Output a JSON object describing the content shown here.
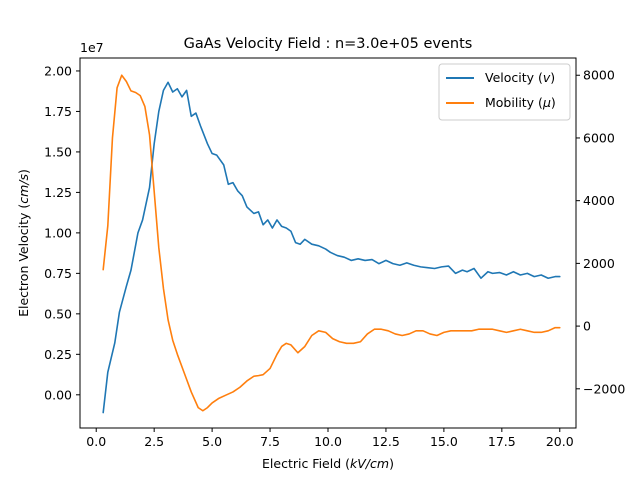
{
  "chart_data": {
    "type": "line",
    "title": "GaAs Velocity Field : n=3.0e+05 events",
    "xlabel_main": "Electric Field (",
    "xlabel_unit": "kV/cm",
    "xlabel_end": ")",
    "ylabel_main": "Electron Velocity (",
    "ylabel_unit": "cm/s",
    "ylabel_end": ")",
    "y_multiplier": "1e7",
    "xlim": [
      -0.7,
      20.7
    ],
    "ylim": [
      -2050000.0,
      20800000.0
    ],
    "y2lim": [
      -3250,
      8550
    ],
    "x_ticks": [
      0.0,
      2.5,
      5.0,
      7.5,
      10.0,
      12.5,
      15.0,
      17.5,
      20.0
    ],
    "x_tick_labels": [
      "0.0",
      "2.5",
      "5.0",
      "7.5",
      "10.0",
      "12.5",
      "15.0",
      "17.5",
      "20.0"
    ],
    "y_ticks": [
      0.0,
      2500000.0,
      5000000.0,
      7500000.0,
      10000000.0,
      12500000.0,
      15000000.0,
      17500000.0,
      20000000.0
    ],
    "y_tick_labels": [
      "0.00",
      "0.25",
      "0.50",
      "0.75",
      "1.00",
      "1.25",
      "1.50",
      "1.75",
      "2.00"
    ],
    "y2_ticks": [
      -2000,
      0,
      2000,
      4000,
      6000,
      8000
    ],
    "y2_tick_labels": [
      "−2000",
      "0",
      "2000",
      "4000",
      "6000",
      "8000"
    ],
    "legend_position": "top-right",
    "grid": false,
    "series": [
      {
        "name": "Velocity (v)",
        "legend_text": "Velocity (",
        "legend_symbol": "v",
        "axis": "left",
        "color": "#1f77b4",
        "x": [
          0.3,
          0.5,
          0.8,
          1.0,
          1.3,
          1.5,
          1.8,
          2.0,
          2.3,
          2.5,
          2.7,
          2.9,
          3.1,
          3.3,
          3.5,
          3.7,
          3.9,
          4.1,
          4.3,
          4.5,
          4.8,
          5.0,
          5.2,
          5.5,
          5.7,
          5.9,
          6.1,
          6.3,
          6.5,
          6.8,
          7.0,
          7.2,
          7.4,
          7.6,
          7.8,
          8.0,
          8.2,
          8.4,
          8.6,
          8.8,
          9.0,
          9.3,
          9.6,
          9.9,
          10.1,
          10.4,
          10.7,
          11.0,
          11.3,
          11.6,
          11.9,
          12.2,
          12.5,
          12.8,
          13.1,
          13.4,
          13.7,
          14.0,
          14.3,
          14.6,
          14.9,
          15.2,
          15.5,
          15.8,
          16.0,
          16.3,
          16.6,
          16.9,
          17.1,
          17.4,
          17.7,
          18.0,
          18.3,
          18.6,
          18.9,
          19.2,
          19.5,
          19.8,
          20.0
        ],
        "y": [
          -1100000.0,
          1400000.0,
          3200000.0,
          5100000.0,
          6700000.0,
          7700000.0,
          10000000.0,
          10800000.0,
          12800000.0,
          15500000.0,
          17500000.0,
          18800000.0,
          19300000.0,
          18700000.0,
          18900000.0,
          18400000.0,
          18800000.0,
          17200000.0,
          17400000.0,
          16600000.0,
          15500000.0,
          14900000.0,
          14800000.0,
          14200000.0,
          13000000.0,
          13100000.0,
          12600000.0,
          12300000.0,
          11600000.0,
          11200000.0,
          11300000.0,
          10500000.0,
          10800000.0,
          10300000.0,
          10800000.0,
          10400000.0,
          10300000.0,
          10100000.0,
          9400000.0,
          9300000.0,
          9600000.0,
          9300000.0,
          9200000.0,
          9000000.0,
          8800000.0,
          8600000.0,
          8500000.0,
          8300000.0,
          8400000.0,
          8300000.0,
          8350000.0,
          8100000.0,
          8300000.0,
          8100000.0,
          8000000.0,
          8150000.0,
          8000000.0,
          7900000.0,
          7850000.0,
          7800000.0,
          7900000.0,
          7950000.0,
          7500000.0,
          7700000.0,
          7600000.0,
          7800000.0,
          7200000.0,
          7600000.0,
          7500000.0,
          7550000.0,
          7400000.0,
          7600000.0,
          7400000.0,
          7500000.0,
          7300000.0,
          7400000.0,
          7200000.0,
          7300000.0,
          7300000.0
        ]
      },
      {
        "name": "Mobility (μ)",
        "legend_text": "Mobility (",
        "legend_symbol": "μ",
        "axis": "right",
        "color": "#ff7f0e",
        "x": [
          0.3,
          0.5,
          0.7,
          0.9,
          1.1,
          1.3,
          1.5,
          1.7,
          1.9,
          2.1,
          2.3,
          2.5,
          2.7,
          2.9,
          3.1,
          3.3,
          3.5,
          3.8,
          4.1,
          4.4,
          4.6,
          4.8,
          5.0,
          5.3,
          5.6,
          5.9,
          6.2,
          6.5,
          6.8,
          7.0,
          7.2,
          7.5,
          7.8,
          8.0,
          8.2,
          8.4,
          8.7,
          9.0,
          9.3,
          9.6,
          9.9,
          10.2,
          10.5,
          10.8,
          11.1,
          11.4,
          11.7,
          12.0,
          12.3,
          12.6,
          12.9,
          13.2,
          13.5,
          13.8,
          14.1,
          14.4,
          14.7,
          15.0,
          15.3,
          15.6,
          15.9,
          16.2,
          16.5,
          16.8,
          17.1,
          17.4,
          17.7,
          18.0,
          18.3,
          18.6,
          18.9,
          19.2,
          19.5,
          19.8,
          20.0
        ],
        "y": [
          1800,
          3200,
          6000,
          7600,
          8000,
          7800,
          7500,
          7450,
          7350,
          7000,
          6100,
          4300,
          2500,
          1200,
          200,
          -450,
          -900,
          -1500,
          -2100,
          -2600,
          -2700,
          -2600,
          -2450,
          -2300,
          -2200,
          -2100,
          -1950,
          -1750,
          -1600,
          -1580,
          -1550,
          -1350,
          -900,
          -650,
          -550,
          -600,
          -850,
          -650,
          -300,
          -150,
          -200,
          -400,
          -500,
          -550,
          -550,
          -500,
          -250,
          -100,
          -100,
          -150,
          -250,
          -300,
          -250,
          -150,
          -150,
          -250,
          -300,
          -200,
          -150,
          -150,
          -150,
          -150,
          -100,
          -100,
          -100,
          -150,
          -200,
          -150,
          -100,
          -150,
          -200,
          -200,
          -150,
          -50,
          -50
        ]
      }
    ]
  }
}
